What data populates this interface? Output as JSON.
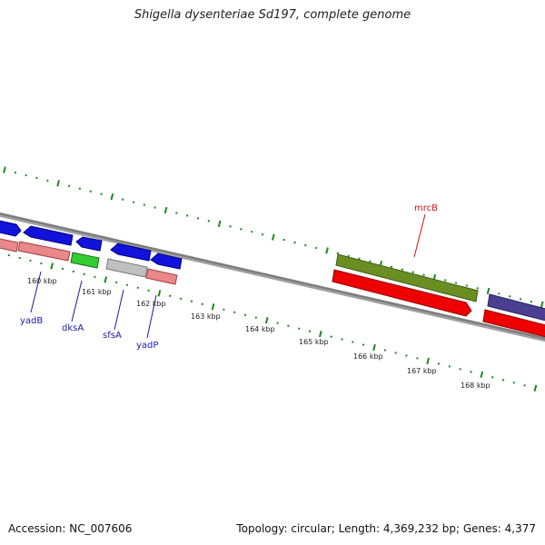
{
  "title": "Shigella dysenteriae Sd197, complete genome",
  "footer": {
    "accession": "Accession: NC_007606",
    "summary": "Topology: circular; Length: 4,369,232 bp; Genes: 4,377"
  },
  "ticks": [
    "160 kbp",
    "161 kbp",
    "162 kbp",
    "163 kbp",
    "164 kbp",
    "165 kbp",
    "166 kbp",
    "167 kbp",
    "168 kbp"
  ],
  "gene_labels": [
    {
      "name": "yadB",
      "color": "#1a1aa6"
    },
    {
      "name": "dksA",
      "color": "#1a1aa6"
    },
    {
      "name": "sfsA",
      "color": "#1a1aa6"
    },
    {
      "name": "yadP",
      "color": "#1a1aa6"
    },
    {
      "name": "mrcB",
      "color": "#cc1111"
    }
  ],
  "colors": {
    "cds_forward": "#1010e0",
    "cds_rna_salmon": "#e08080",
    "green_gene": "#33cc33",
    "grey_gene": "#bbbbbb",
    "mrcB_olive": "#6b8e23",
    "red_gene": "#ee0000",
    "purple_gene": "#4b3f8f",
    "tick_green": "#1a8a1a",
    "backbone": "#808080"
  }
}
